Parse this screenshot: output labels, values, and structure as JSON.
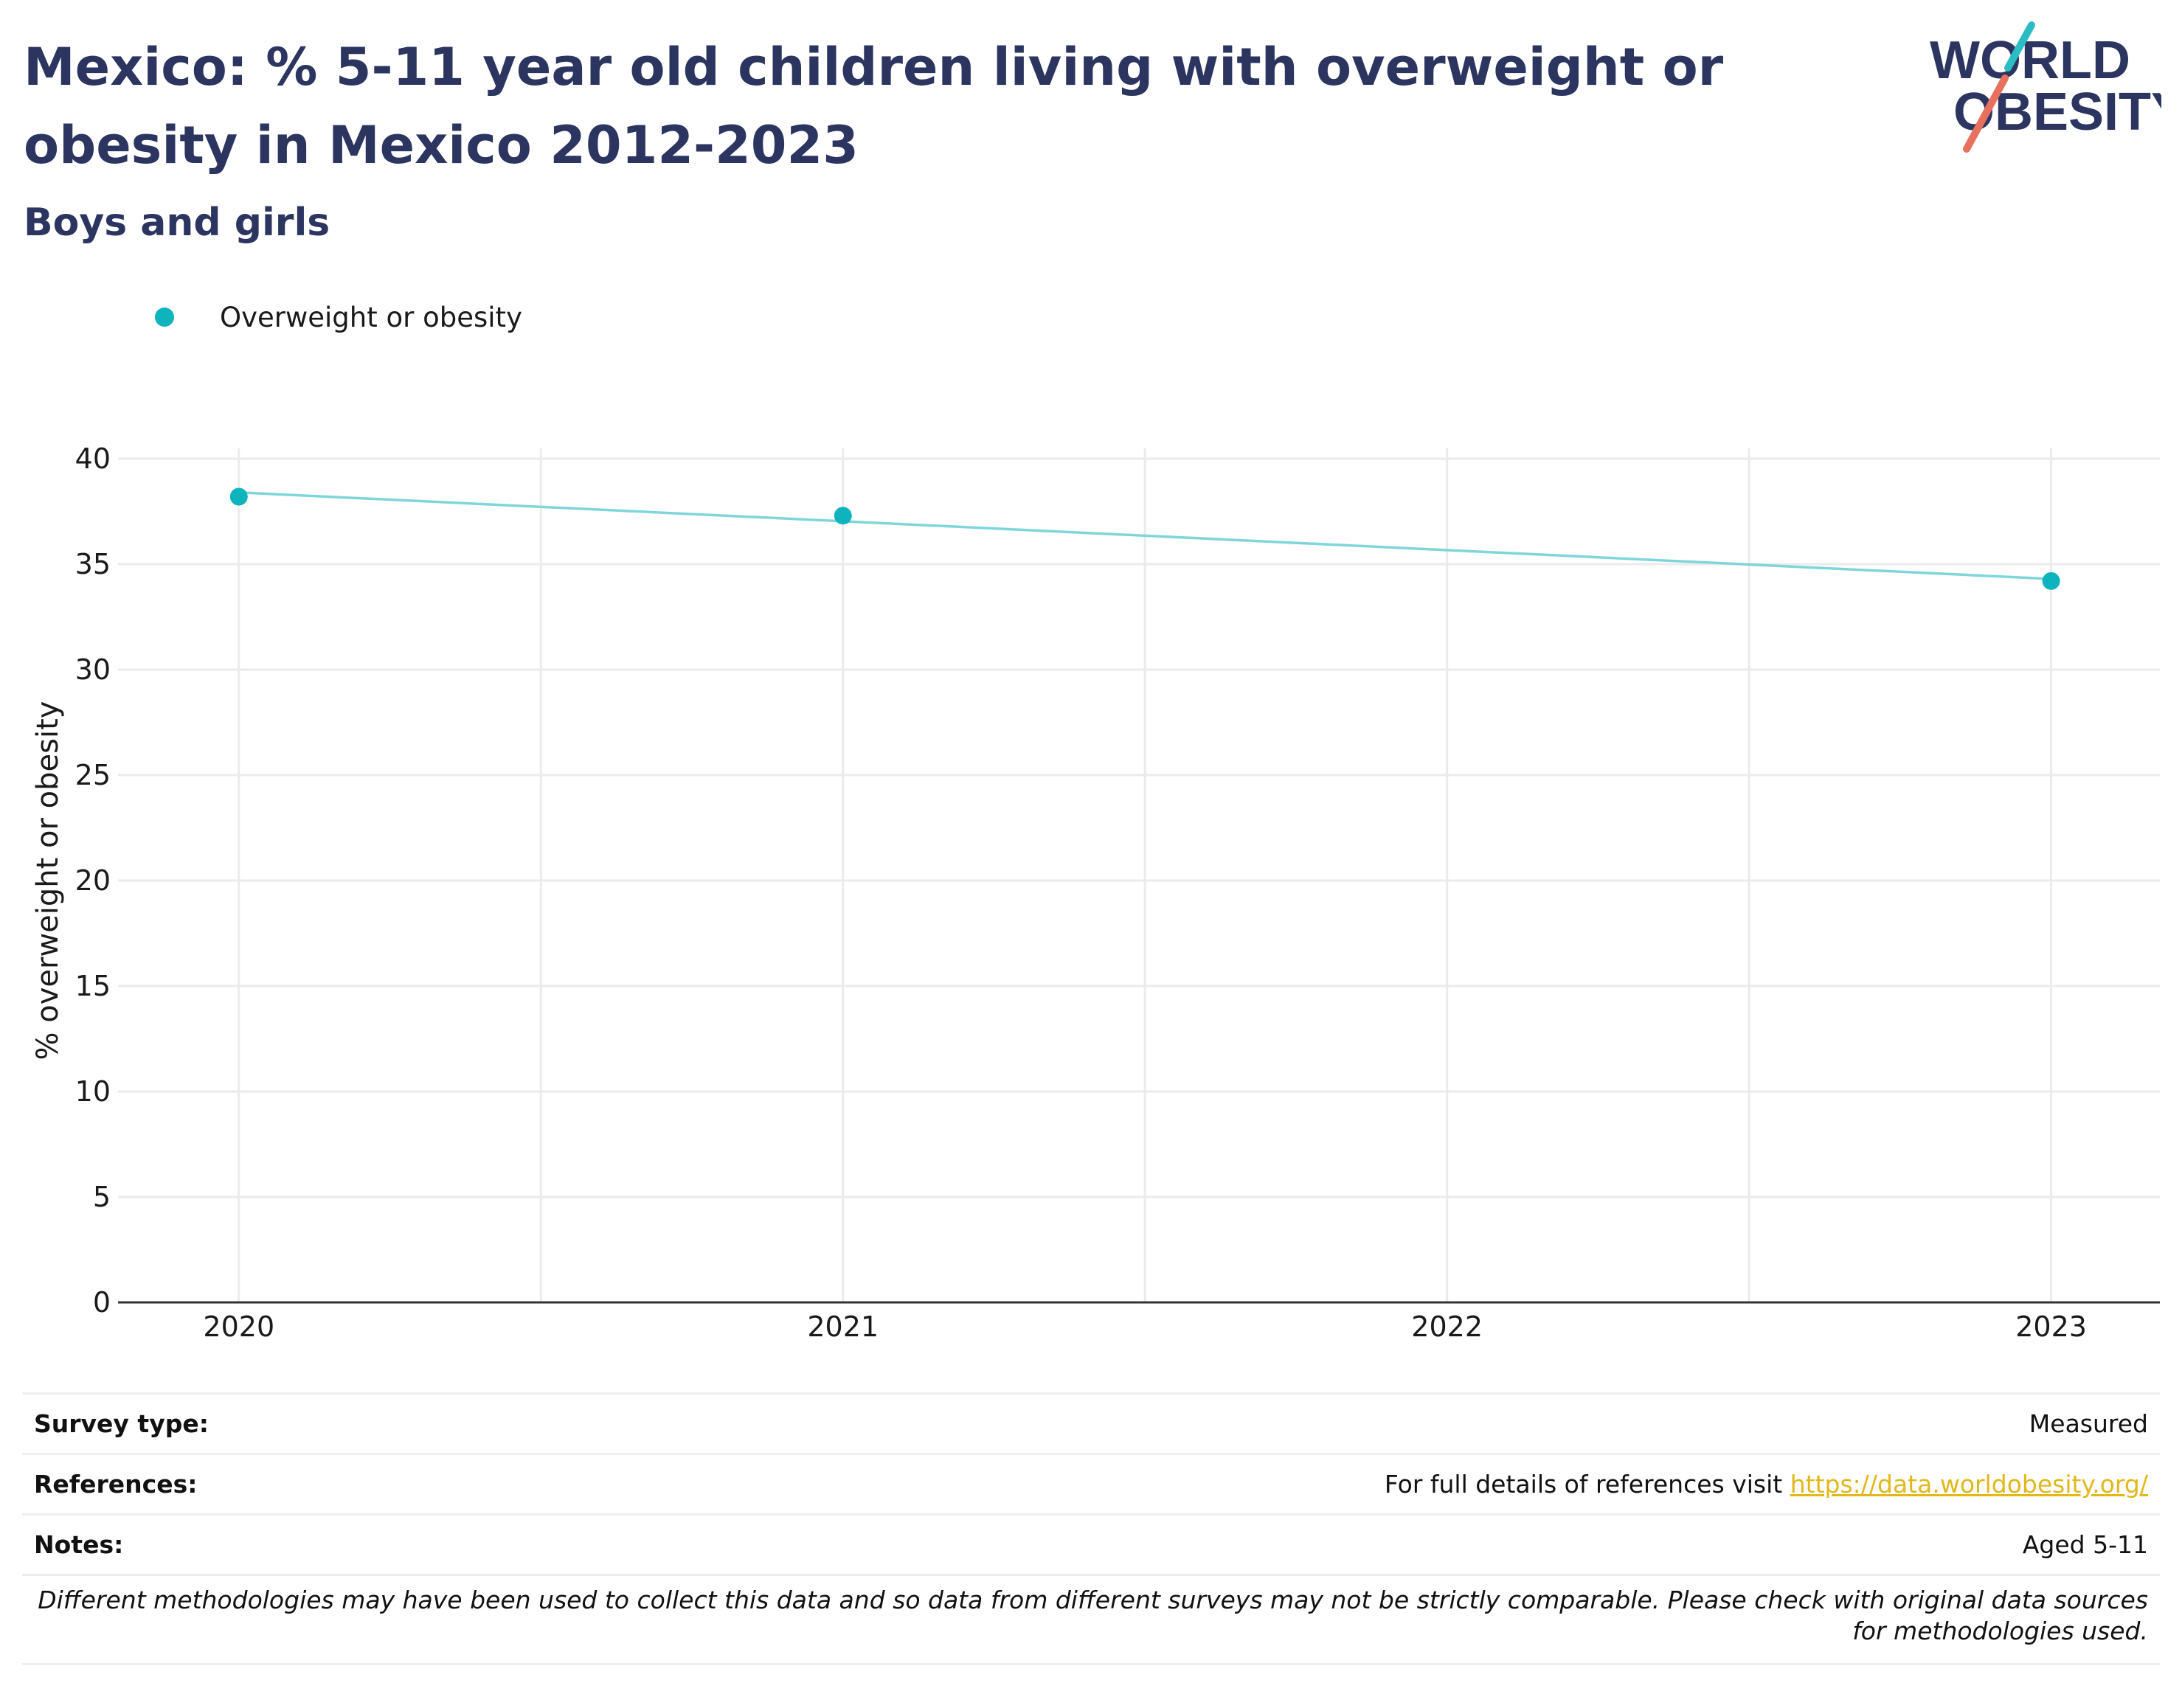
{
  "header": {
    "title": "Mexico: % 5-11 year old children living with overweight or obesity in Mexico 2012-2023",
    "subtitle": "Boys and girls"
  },
  "logo": {
    "line1": "WORLD",
    "line2": "OBESITY",
    "text_color": "#2b3560",
    "accent_teal": "#2cbcc4",
    "accent_coral": "#e8705f"
  },
  "legend": {
    "items": [
      {
        "label": "Overweight or obesity",
        "color": "#0db3bd"
      }
    ]
  },
  "chart_data": {
    "type": "scatter",
    "title": "",
    "xlabel": "",
    "ylabel": "% overweight or obesity",
    "categories": [
      "2020",
      "2021",
      "2022",
      "2023"
    ],
    "x": [
      2020,
      2021,
      2023
    ],
    "xlim": [
      2019.8,
      2023.18
    ],
    "ylim": [
      0,
      40
    ],
    "yticks": [
      0,
      5,
      10,
      15,
      20,
      25,
      30,
      35,
      40
    ],
    "grid": true,
    "legend_position": "top-left",
    "series": [
      {
        "name": "Overweight or obesity",
        "x": [
          2020,
          2021,
          2023
        ],
        "values": [
          38.2,
          37.3,
          34.2
        ],
        "color": "#0db3bd"
      }
    ],
    "trendline": {
      "x": [
        2020,
        2023
      ],
      "values": [
        38.4,
        34.3
      ],
      "color": "#7fd6da"
    }
  },
  "info": {
    "survey_type": {
      "label": "Survey type:",
      "value": "Measured"
    },
    "references": {
      "label": "References:",
      "value": "For full details of references visit ",
      "link": "https://data.worldobesity.org/"
    },
    "notes": {
      "label": "Notes:",
      "value": "Aged 5-11"
    },
    "disclaimer": "Different methodologies may have been used to collect this data and so data from different surveys may not be strictly comparable. Please check with original data sources for methodologies used."
  }
}
